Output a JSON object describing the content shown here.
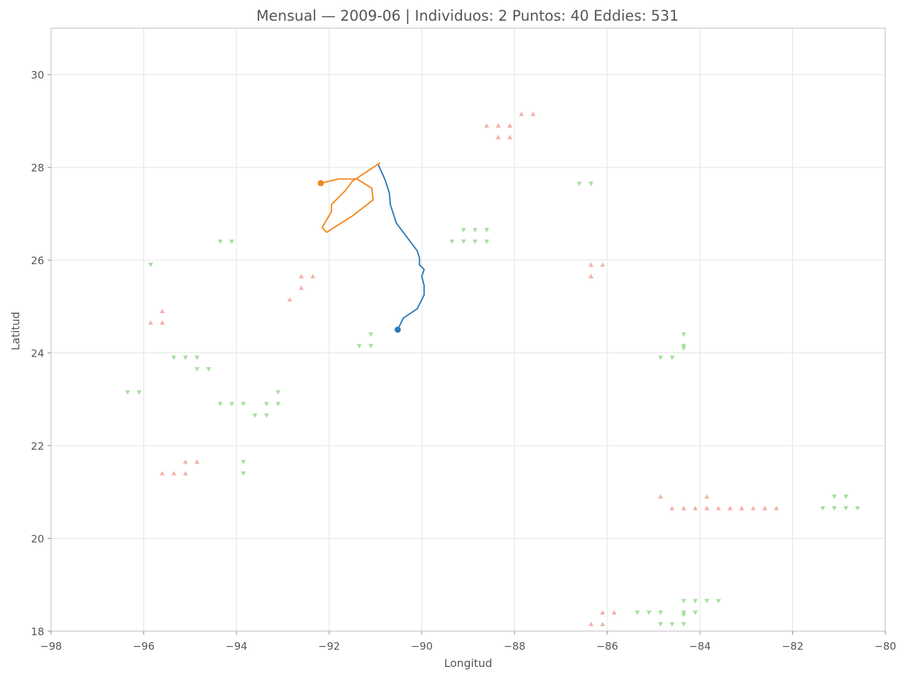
{
  "chart_data": {
    "type": "scatter",
    "title": "Mensual — 2009-06  |  Individuos: 2  Puntos: 40  Eddies: 531",
    "xlabel": "Longitud",
    "ylabel": "Latitud",
    "xlim": [
      -98,
      -80
    ],
    "ylim": [
      18,
      31
    ],
    "xticks": [
      -98,
      -96,
      -94,
      -92,
      -90,
      -88,
      -86,
      -84,
      -82,
      -80
    ],
    "yticks": [
      18,
      20,
      22,
      24,
      26,
      28,
      30
    ],
    "grid": true,
    "colors": {
      "track1": "#2c7bb6",
      "track2": "#f28a1e",
      "eddy_up": "#f4b2ab",
      "eddy_down": "#a8dfa0"
    },
    "tracks": [
      {
        "points": [
          [
            -90.95,
            28.08
          ],
          [
            -90.8,
            27.75
          ],
          [
            -90.7,
            27.45
          ],
          [
            -90.68,
            27.2
          ],
          [
            -90.55,
            26.8
          ],
          [
            -90.1,
            26.2
          ],
          [
            -90.05,
            26.05
          ],
          [
            -90.05,
            25.9
          ],
          [
            -89.95,
            25.8
          ],
          [
            -90.0,
            25.65
          ],
          [
            -89.95,
            25.45
          ],
          [
            -89.95,
            25.25
          ],
          [
            -90.0,
            25.15
          ],
          [
            -90.1,
            24.95
          ],
          [
            -90.4,
            24.75
          ],
          [
            -90.52,
            24.5
          ]
        ],
        "end_marker": [
          -90.52,
          24.5
        ]
      },
      {
        "points": [
          [
            -90.9,
            28.1
          ],
          [
            -91.5,
            27.7
          ],
          [
            -91.65,
            27.5
          ],
          [
            -91.95,
            27.2
          ],
          [
            -91.95,
            27.05
          ],
          [
            -92.15,
            26.7
          ],
          [
            -92.05,
            26.6
          ],
          [
            -91.9,
            26.7
          ],
          [
            -91.5,
            26.95
          ],
          [
            -91.05,
            27.3
          ],
          [
            -91.08,
            27.55
          ],
          [
            -91.4,
            27.75
          ],
          [
            -91.8,
            27.75
          ],
          [
            -92.18,
            27.66
          ]
        ],
        "end_marker": [
          -92.18,
          27.66
        ]
      }
    ],
    "eddies_up": [
      [
        -88.6,
        28.9
      ],
      [
        -88.35,
        28.9
      ],
      [
        -88.1,
        28.9
      ],
      [
        -87.85,
        29.15
      ],
      [
        -87.6,
        29.15
      ],
      [
        -88.35,
        28.65
      ],
      [
        -88.1,
        28.65
      ],
      [
        -92.6,
        25.65
      ],
      [
        -92.35,
        25.65
      ],
      [
        -92.6,
        25.4
      ],
      [
        -92.85,
        25.15
      ],
      [
        -95.85,
        24.65
      ],
      [
        -95.6,
        24.65
      ],
      [
        -95.6,
        24.9
      ],
      [
        -95.6,
        21.4
      ],
      [
        -95.35,
        21.4
      ],
      [
        -95.1,
        21.4
      ],
      [
        -95.1,
        21.65
      ],
      [
        -94.85,
        21.65
      ],
      [
        -86.35,
        25.9
      ],
      [
        -86.1,
        25.9
      ],
      [
        -86.35,
        25.65
      ],
      [
        -86.35,
        25.65
      ],
      [
        -84.85,
        20.9
      ],
      [
        -83.85,
        20.9
      ],
      [
        -84.6,
        20.65
      ],
      [
        -84.35,
        20.65
      ],
      [
        -84.1,
        20.65
      ],
      [
        -83.85,
        20.65
      ],
      [
        -83.6,
        20.65
      ],
      [
        -83.35,
        20.65
      ],
      [
        -83.1,
        20.65
      ],
      [
        -82.85,
        20.65
      ],
      [
        -82.6,
        20.65
      ],
      [
        -82.35,
        20.65
      ],
      [
        -86.1,
        18.4
      ],
      [
        -85.85,
        18.4
      ],
      [
        -86.35,
        18.15
      ],
      [
        -86.1,
        18.15
      ]
    ],
    "eddies_down": [
      [
        -94.35,
        26.4
      ],
      [
        -94.1,
        26.4
      ],
      [
        -95.85,
        25.9
      ],
      [
        -91.1,
        24.4
      ],
      [
        -91.35,
        24.15
      ],
      [
        -91.1,
        24.15
      ],
      [
        -95.35,
        23.9
      ],
      [
        -95.1,
        23.9
      ],
      [
        -94.85,
        23.9
      ],
      [
        -94.85,
        23.65
      ],
      [
        -94.6,
        23.65
      ],
      [
        -96.35,
        23.15
      ],
      [
        -96.1,
        23.15
      ],
      [
        -93.1,
        23.15
      ],
      [
        -94.35,
        22.9
      ],
      [
        -94.1,
        22.9
      ],
      [
        -93.85,
        22.9
      ],
      [
        -93.35,
        22.9
      ],
      [
        -93.1,
        22.9
      ],
      [
        -93.6,
        22.65
      ],
      [
        -93.35,
        22.65
      ],
      [
        -93.85,
        21.65
      ],
      [
        -93.85,
        21.4
      ],
      [
        -89.1,
        26.65
      ],
      [
        -88.85,
        26.65
      ],
      [
        -88.6,
        26.65
      ],
      [
        -89.35,
        26.4
      ],
      [
        -89.1,
        26.4
      ],
      [
        -88.85,
        26.4
      ],
      [
        -88.6,
        26.4
      ],
      [
        -86.6,
        27.65
      ],
      [
        -86.35,
        27.65
      ],
      [
        -84.35,
        24.4
      ],
      [
        -84.35,
        24.15
      ],
      [
        -84.35,
        24.1
      ],
      [
        -84.85,
        23.9
      ],
      [
        -84.6,
        23.9
      ],
      [
        -81.1,
        20.9
      ],
      [
        -80.85,
        20.9
      ],
      [
        -81.35,
        20.65
      ],
      [
        -81.1,
        20.65
      ],
      [
        -80.85,
        20.65
      ],
      [
        -80.6,
        20.65
      ],
      [
        -84.35,
        18.65
      ],
      [
        -84.1,
        18.65
      ],
      [
        -83.85,
        18.65
      ],
      [
        -83.6,
        18.65
      ],
      [
        -85.35,
        18.4
      ],
      [
        -85.1,
        18.4
      ],
      [
        -84.85,
        18.4
      ],
      [
        -84.35,
        18.4
      ],
      [
        -84.1,
        18.4
      ],
      [
        -84.35,
        18.35
      ],
      [
        -84.85,
        18.15
      ],
      [
        -84.6,
        18.15
      ],
      [
        -84.35,
        18.15
      ]
    ]
  }
}
